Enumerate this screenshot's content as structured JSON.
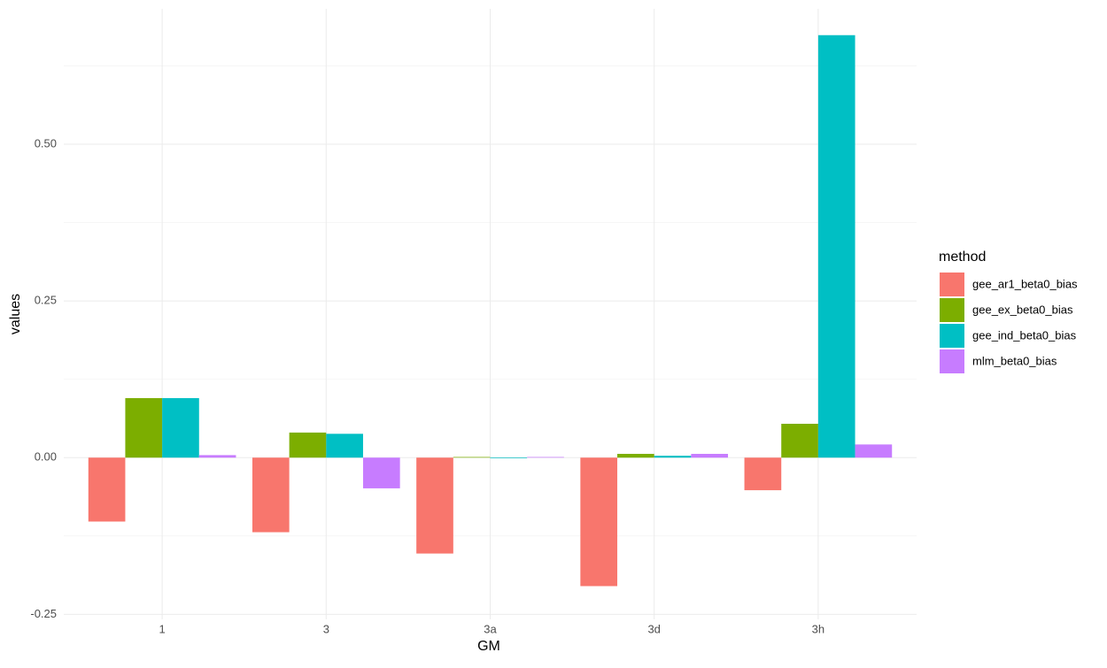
{
  "chart_data": {
    "type": "bar",
    "x_label": "GM",
    "y_label": "values",
    "legend_title": "method",
    "legend_position": "right",
    "categories": [
      "1",
      "3",
      "3a",
      "3d",
      "3h"
    ],
    "series": [
      {
        "name": "gee_ar1_beta0_bias",
        "color": "#F8766D",
        "values": [
          -0.102,
          -0.119,
          -0.153,
          -0.205,
          -0.052
        ]
      },
      {
        "name": "gee_ex_beta0_bias",
        "color": "#7CAE00",
        "values": [
          0.095,
          0.04,
          0.001,
          0.006,
          0.054
        ]
      },
      {
        "name": "gee_ind_beta0_bias",
        "color": "#00BFC4",
        "values": [
          0.095,
          0.038,
          -0.001,
          0.003,
          0.674
        ]
      },
      {
        "name": "mlm_beta0_bias",
        "color": "#C77CFF",
        "values": [
          0.004,
          -0.049,
          0.001,
          0.006,
          0.021
        ]
      }
    ],
    "ylim": [
      -0.258,
      0.716
    ],
    "yticks": [
      {
        "value": -0.25,
        "label": "-0.25"
      },
      {
        "value": 0,
        "label": "0.00"
      },
      {
        "value": 0.25,
        "label": "0.25"
      },
      {
        "value": 0.5,
        "label": "0.50"
      }
    ],
    "grid": true
  }
}
